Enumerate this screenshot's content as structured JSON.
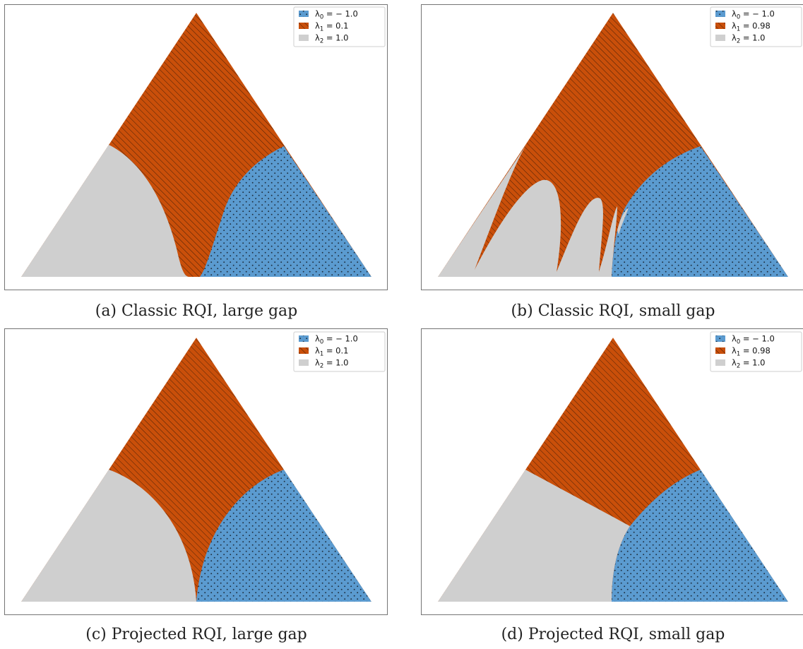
{
  "chart_data": [
    {
      "type": "other",
      "caption": "(a) Classic RQI, large gap",
      "legend": [
        {
          "symbol": "λ",
          "sub": "0",
          "text": " = − 1.0",
          "color": "#5b9bd0",
          "pattern": "dots"
        },
        {
          "symbol": "λ",
          "sub": "1",
          "text": " = 0.1",
          "color": "#c94f0a",
          "pattern": "hatch"
        },
        {
          "symbol": "λ",
          "sub": "2",
          "text": " = 1.0",
          "color": "#cfcfcf",
          "pattern": "none"
        }
      ]
    },
    {
      "type": "other",
      "caption": "(b) Classic RQI, small gap",
      "legend": [
        {
          "symbol": "λ",
          "sub": "0",
          "text": " = − 1.0",
          "color": "#5b9bd0",
          "pattern": "dots"
        },
        {
          "symbol": "λ",
          "sub": "1",
          "text": " = 0.98",
          "color": "#c94f0a",
          "pattern": "hatch"
        },
        {
          "symbol": "λ",
          "sub": "2",
          "text": " = 1.0",
          "color": "#cfcfcf",
          "pattern": "none"
        }
      ]
    },
    {
      "type": "other",
      "caption": "(c) Projected RQI, large gap",
      "legend": [
        {
          "symbol": "λ",
          "sub": "0",
          "text": " = − 1.0",
          "color": "#5b9bd0",
          "pattern": "dots"
        },
        {
          "symbol": "λ",
          "sub": "1",
          "text": " = 0.1",
          "color": "#c94f0a",
          "pattern": "hatch"
        },
        {
          "symbol": "λ",
          "sub": "2",
          "text": " = 1.0",
          "color": "#cfcfcf",
          "pattern": "none"
        }
      ]
    },
    {
      "type": "other",
      "caption": "(d) Projected RQI, small gap",
      "legend": [
        {
          "symbol": "λ",
          "sub": "0",
          "text": " = − 1.0",
          "color": "#5b9bd0",
          "pattern": "dots"
        },
        {
          "symbol": "λ",
          "sub": "1",
          "text": " = 0.98",
          "color": "#c94f0a",
          "pattern": "hatch"
        },
        {
          "symbol": "λ",
          "sub": "2",
          "text": " = 1.0",
          "color": "#cfcfcf",
          "pattern": "none"
        }
      ]
    }
  ]
}
